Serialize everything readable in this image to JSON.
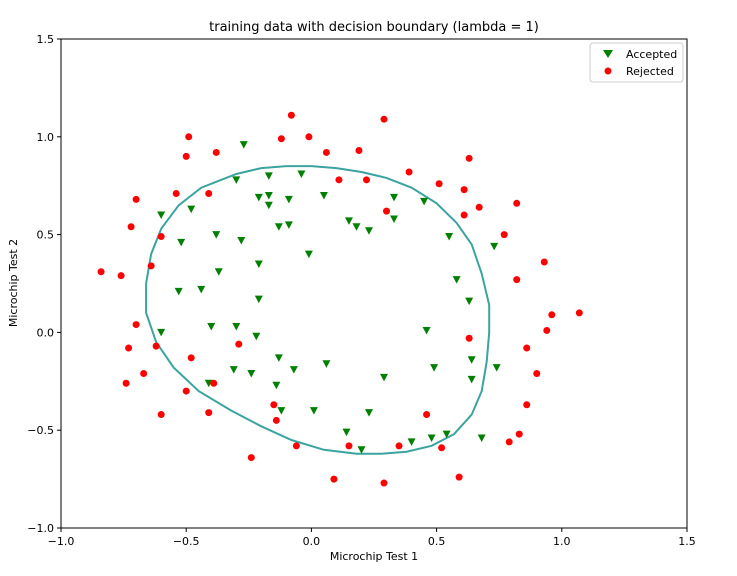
{
  "chart_data": {
    "type": "scatter",
    "title": "training data with decision boundary (lambda = 1)",
    "xlabel": "Microchip Test 1",
    "ylabel": "Microchip Test 2",
    "xlim": [
      -1.0,
      1.5
    ],
    "ylim": [
      -1.0,
      1.5
    ],
    "x_ticks": [
      "−1.0",
      "−0.5",
      "0.0",
      "0.5",
      "1.0",
      "1.5"
    ],
    "x_tick_values": [
      -1.0,
      -0.5,
      0.0,
      0.5,
      1.0,
      1.5
    ],
    "y_ticks": [
      "−1.0",
      "−0.5",
      "0.0",
      "0.5",
      "1.0",
      "1.5"
    ],
    "y_tick_values": [
      -1.0,
      -0.5,
      0.0,
      0.5,
      1.0,
      1.5
    ],
    "grid": false,
    "legend_position": "top-right",
    "series": [
      {
        "name": "Accepted",
        "marker": "triangle-down",
        "color": "#008000",
        "points": [
          [
            -0.27,
            0.96
          ],
          [
            -0.17,
            0.8
          ],
          [
            -0.04,
            0.81
          ],
          [
            -0.3,
            0.78
          ],
          [
            -0.21,
            0.69
          ],
          [
            -0.17,
            0.7
          ],
          [
            -0.09,
            0.68
          ],
          [
            -0.17,
            0.65
          ],
          [
            0.05,
            0.7
          ],
          [
            0.33,
            0.69
          ],
          [
            0.45,
            0.67
          ],
          [
            -0.6,
            0.6
          ],
          [
            -0.48,
            0.63
          ],
          [
            -0.13,
            0.54
          ],
          [
            -0.09,
            0.55
          ],
          [
            0.15,
            0.57
          ],
          [
            0.18,
            0.54
          ],
          [
            0.23,
            0.52
          ],
          [
            0.33,
            0.58
          ],
          [
            -0.38,
            0.5
          ],
          [
            -0.28,
            0.47
          ],
          [
            -0.52,
            0.46
          ],
          [
            0.55,
            0.49
          ],
          [
            0.73,
            0.44
          ],
          [
            -0.01,
            0.4
          ],
          [
            -0.21,
            0.35
          ],
          [
            -0.37,
            0.31
          ],
          [
            0.58,
            0.27
          ],
          [
            -0.53,
            0.21
          ],
          [
            -0.44,
            0.22
          ],
          [
            -0.21,
            0.17
          ],
          [
            0.63,
            0.16
          ],
          [
            -0.4,
            0.03
          ],
          [
            -0.3,
            0.03
          ],
          [
            -0.6,
            0.0
          ],
          [
            -0.22,
            -0.02
          ],
          [
            0.46,
            0.01
          ],
          [
            0.64,
            -0.14
          ],
          [
            -0.13,
            -0.13
          ],
          [
            0.06,
            -0.16
          ],
          [
            -0.07,
            -0.19
          ],
          [
            -0.31,
            -0.19
          ],
          [
            -0.24,
            -0.21
          ],
          [
            0.49,
            -0.18
          ],
          [
            0.74,
            -0.18
          ],
          [
            0.29,
            -0.23
          ],
          [
            0.64,
            -0.24
          ],
          [
            -0.41,
            -0.26
          ],
          [
            -0.14,
            -0.27
          ],
          [
            -0.12,
            -0.4
          ],
          [
            0.01,
            -0.4
          ],
          [
            0.23,
            -0.41
          ],
          [
            0.14,
            -0.51
          ],
          [
            0.48,
            -0.54
          ],
          [
            0.54,
            -0.52
          ],
          [
            0.68,
            -0.54
          ],
          [
            0.4,
            -0.56
          ],
          [
            0.2,
            -0.6
          ]
        ]
      },
      {
        "name": "Rejected",
        "marker": "circle",
        "color": "#ff0000",
        "points": [
          [
            -0.08,
            1.11
          ],
          [
            0.29,
            1.09
          ],
          [
            -0.49,
            1.0
          ],
          [
            -0.5,
            0.9
          ],
          [
            -0.12,
            0.99
          ],
          [
            -0.01,
            1.0
          ],
          [
            -0.38,
            0.92
          ],
          [
            0.06,
            0.92
          ],
          [
            0.19,
            0.93
          ],
          [
            0.63,
            0.89
          ],
          [
            0.39,
            0.82
          ],
          [
            0.51,
            0.76
          ],
          [
            0.61,
            0.73
          ],
          [
            0.11,
            0.78
          ],
          [
            0.22,
            0.78
          ],
          [
            -0.54,
            0.71
          ],
          [
            -0.41,
            0.71
          ],
          [
            -0.7,
            0.68
          ],
          [
            0.67,
            0.64
          ],
          [
            0.82,
            0.66
          ],
          [
            0.3,
            0.62
          ],
          [
            0.61,
            0.6
          ],
          [
            -0.72,
            0.54
          ],
          [
            0.77,
            0.5
          ],
          [
            -0.6,
            0.49
          ],
          [
            0.93,
            0.36
          ],
          [
            -0.84,
            0.31
          ],
          [
            -0.76,
            0.29
          ],
          [
            0.82,
            0.27
          ],
          [
            -0.64,
            0.34
          ],
          [
            1.07,
            0.1
          ],
          [
            0.96,
            0.09
          ],
          [
            -0.7,
            0.04
          ],
          [
            0.94,
            0.01
          ],
          [
            0.63,
            -0.03
          ],
          [
            -0.29,
            -0.06
          ],
          [
            -0.62,
            -0.07
          ],
          [
            -0.73,
            -0.08
          ],
          [
            0.86,
            -0.08
          ],
          [
            -0.48,
            -0.13
          ],
          [
            -0.67,
            -0.21
          ],
          [
            0.9,
            -0.21
          ],
          [
            -0.74,
            -0.26
          ],
          [
            -0.39,
            -0.26
          ],
          [
            -0.5,
            -0.3
          ],
          [
            -0.15,
            -0.37
          ],
          [
            0.86,
            -0.37
          ],
          [
            -0.6,
            -0.42
          ],
          [
            -0.41,
            -0.41
          ],
          [
            0.46,
            -0.42
          ],
          [
            -0.14,
            -0.45
          ],
          [
            0.83,
            -0.52
          ],
          [
            0.79,
            -0.56
          ],
          [
            0.15,
            -0.58
          ],
          [
            0.35,
            -0.58
          ],
          [
            -0.06,
            -0.58
          ],
          [
            0.52,
            -0.59
          ],
          [
            -0.24,
            -0.64
          ],
          [
            0.59,
            -0.74
          ],
          [
            0.09,
            -0.75
          ],
          [
            0.29,
            -0.77
          ]
        ]
      }
    ],
    "decision_boundary": {
      "color": "#3ba3a0",
      "points": [
        [
          -0.3,
          0.81
        ],
        [
          -0.2,
          0.84
        ],
        [
          -0.1,
          0.85
        ],
        [
          0.0,
          0.85
        ],
        [
          0.1,
          0.84
        ],
        [
          0.2,
          0.82
        ],
        [
          0.3,
          0.79
        ],
        [
          0.4,
          0.74
        ],
        [
          0.5,
          0.66
        ],
        [
          0.58,
          0.56
        ],
        [
          0.64,
          0.45
        ],
        [
          0.68,
          0.3
        ],
        [
          0.71,
          0.14
        ],
        [
          0.71,
          0.0
        ],
        [
          0.7,
          -0.15
        ],
        [
          0.68,
          -0.3
        ],
        [
          0.64,
          -0.42
        ],
        [
          0.57,
          -0.52
        ],
        [
          0.48,
          -0.58
        ],
        [
          0.38,
          -0.61
        ],
        [
          0.28,
          -0.62
        ],
        [
          0.18,
          -0.62
        ],
        [
          0.05,
          -0.6
        ],
        [
          -0.08,
          -0.55
        ],
        [
          -0.2,
          -0.48
        ],
        [
          -0.32,
          -0.4
        ],
        [
          -0.45,
          -0.3
        ],
        [
          -0.55,
          -0.18
        ],
        [
          -0.62,
          -0.05
        ],
        [
          -0.66,
          0.1
        ],
        [
          -0.66,
          0.25
        ],
        [
          -0.64,
          0.4
        ],
        [
          -0.6,
          0.53
        ],
        [
          -0.53,
          0.65
        ],
        [
          -0.44,
          0.74
        ],
        [
          -0.36,
          0.78
        ],
        [
          -0.3,
          0.81
        ]
      ]
    }
  }
}
